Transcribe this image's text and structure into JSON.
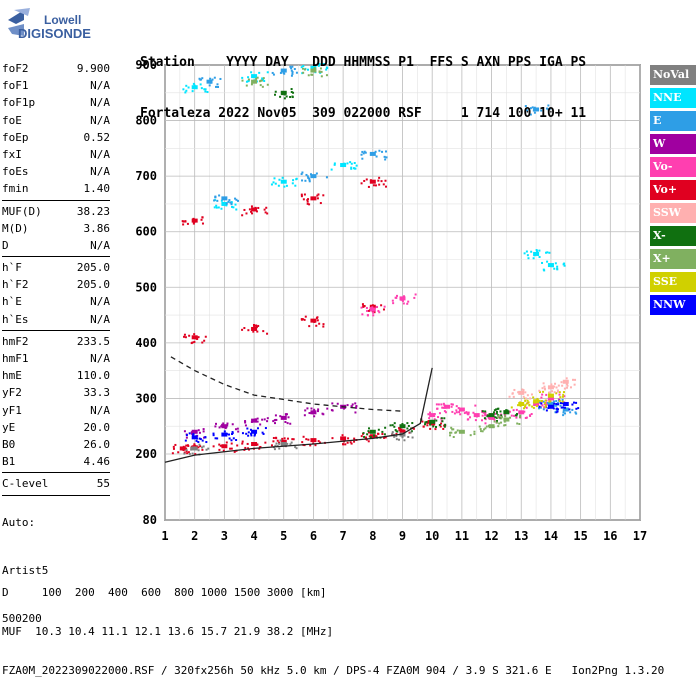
{
  "logo": {
    "line1": "Lowell",
    "line2": "DIGISONDE"
  },
  "header": {
    "labels": "Station    YYYY DAY   DDD HHMMSS P1  FFS S AXN PPS IGA PS",
    "values": "Fortaleza 2022 Nov05  309 022000 RSF     1 714 100 10+ 11"
  },
  "params": [
    {
      "name": "foF2",
      "value": "9.900"
    },
    {
      "name": "foF1",
      "value": "N/A"
    },
    {
      "name": "foF1p",
      "value": "N/A"
    },
    {
      "name": "foE",
      "value": "N/A"
    },
    {
      "name": "foEp",
      "value": "0.52"
    },
    {
      "name": "fxI",
      "value": "N/A"
    },
    {
      "name": "foEs",
      "value": "N/A"
    },
    {
      "name": "fmin",
      "value": "1.40"
    },
    {
      "sep": true
    },
    {
      "name": "MUF(D)",
      "value": "38.23"
    },
    {
      "name": "M(D)",
      "value": "3.86"
    },
    {
      "name": "D",
      "value": "N/A"
    },
    {
      "sep": true
    },
    {
      "name": "h`F",
      "value": "205.0"
    },
    {
      "name": "h`F2",
      "value": "205.0"
    },
    {
      "name": "h`E",
      "value": "N/A"
    },
    {
      "name": "h`Es",
      "value": "N/A"
    },
    {
      "sep": true
    },
    {
      "name": "hmF2",
      "value": "233.5"
    },
    {
      "name": "hmF1",
      "value": "N/A"
    },
    {
      "name": "hmE",
      "value": "110.0"
    },
    {
      "name": "yF2",
      "value": "33.3"
    },
    {
      "name": "yF1",
      "value": "N/A"
    },
    {
      "name": "yE",
      "value": "20.0"
    },
    {
      "name": "B0",
      "value": "26.0"
    },
    {
      "name": "B1",
      "value": "4.46"
    },
    {
      "sep": true
    },
    {
      "name": "C-level",
      "value": "55"
    },
    {
      "sep": true
    }
  ],
  "auto_block": {
    "line1": "Auto:",
    "line2": "Artist5",
    "line3": "500200"
  },
  "legend": [
    {
      "label": "NoVal",
      "color": "#808080"
    },
    {
      "label": "NNE",
      "color": "#00e5ff"
    },
    {
      "label": "E",
      "color": "#2e9ee6"
    },
    {
      "label": "W",
      "color": "#a000a0"
    },
    {
      "label": "Vo-",
      "color": "#ff3fb0"
    },
    {
      "label": "Vo+",
      "color": "#e00020"
    },
    {
      "label": "SSW",
      "color": "#ffb0b0"
    },
    {
      "label": "X-",
      "color": "#107010"
    },
    {
      "label": "X+",
      "color": "#80b060"
    },
    {
      "label": "SSE",
      "color": "#d0d000"
    },
    {
      "label": "NNW",
      "color": "#0000ff"
    }
  ],
  "footer": {
    "line1": "D     100  200  400  600  800 1000 1500 3000 [km]",
    "line2": "MUF  10.3 10.4 11.1 12.1 13.6 15.7 21.9 38.2 [MHz]",
    "line3": "FZA0M_2022309022000.RSF / 320fx256h 50 kHz 5.0 km / DPS-4 FZA0M 904 / 3.9 S 321.6 E   Ion2Png 1.3.20"
  },
  "chart_data": {
    "type": "scatter",
    "xlabel": "",
    "ylabel": "",
    "xlim": [
      1,
      17
    ],
    "ylim": [
      80,
      900
    ],
    "x_ticks": [
      "1",
      "2",
      "3",
      "4",
      "5",
      "6",
      "7",
      "8",
      "9",
      "10",
      "11",
      "12",
      "13",
      "14",
      "15",
      "16",
      "17"
    ],
    "y_ticks": [
      "80",
      "200",
      "300",
      "400",
      "500",
      "600",
      "700",
      "800",
      "900"
    ],
    "grid": true,
    "series": [
      {
        "name": "Vo+",
        "color": "#e00020",
        "points": [
          [
            1.6,
            210
          ],
          [
            2,
            212
          ],
          [
            3,
            214
          ],
          [
            4,
            218
          ],
          [
            5,
            222
          ],
          [
            6,
            225
          ],
          [
            7,
            228
          ],
          [
            8,
            232
          ],
          [
            9,
            240
          ],
          [
            10,
            255
          ],
          [
            2,
            410
          ],
          [
            4,
            425
          ],
          [
            6,
            440
          ],
          [
            8,
            465
          ],
          [
            2,
            620
          ],
          [
            4,
            640
          ],
          [
            6,
            660
          ],
          [
            8,
            690
          ]
        ]
      },
      {
        "name": "Vo-",
        "color": "#ff3fb0",
        "points": [
          [
            10,
            270
          ],
          [
            10.5,
            285
          ],
          [
            11,
            280
          ],
          [
            11.5,
            270
          ],
          [
            12,
            265
          ],
          [
            13,
            275
          ],
          [
            13.5,
            290
          ],
          [
            14,
            300
          ],
          [
            8,
            460
          ],
          [
            9,
            480
          ]
        ]
      },
      {
        "name": "NNE",
        "color": "#00e5ff",
        "points": [
          [
            2,
            860
          ],
          [
            4,
            880
          ],
          [
            6,
            895
          ],
          [
            3,
            650
          ],
          [
            5,
            690
          ],
          [
            7,
            720
          ],
          [
            13.5,
            560
          ],
          [
            14,
            540
          ]
        ]
      },
      {
        "name": "E",
        "color": "#2e9ee6",
        "points": [
          [
            2.5,
            870
          ],
          [
            5,
            890
          ],
          [
            3,
            660
          ],
          [
            6,
            700
          ],
          [
            8,
            740
          ],
          [
            14,
            290
          ],
          [
            14.5,
            280
          ],
          [
            13.5,
            820
          ]
        ]
      },
      {
        "name": "W",
        "color": "#a000a0",
        "points": [
          [
            2,
            240
          ],
          [
            3,
            250
          ],
          [
            4,
            260
          ],
          [
            5,
            265
          ],
          [
            6,
            275
          ],
          [
            7,
            285
          ]
        ]
      },
      {
        "name": "NNW",
        "color": "#0000ff",
        "points": [
          [
            2,
            230
          ],
          [
            3,
            235
          ],
          [
            4,
            240
          ],
          [
            14,
            285
          ],
          [
            14.5,
            290
          ]
        ]
      },
      {
        "name": "X-",
        "color": "#107010",
        "points": [
          [
            8,
            240
          ],
          [
            9,
            250
          ],
          [
            10,
            258
          ],
          [
            12,
            270
          ],
          [
            12.5,
            275
          ],
          [
            5,
            850
          ]
        ]
      },
      {
        "name": "X+",
        "color": "#80b060",
        "points": [
          [
            11,
            240
          ],
          [
            12,
            250
          ],
          [
            12.5,
            262
          ],
          [
            4,
            870
          ],
          [
            6,
            890
          ]
        ]
      },
      {
        "name": "SSE",
        "color": "#d0d000",
        "points": [
          [
            13,
            290
          ],
          [
            13.5,
            295
          ],
          [
            14,
            305
          ]
        ]
      },
      {
        "name": "SSW",
        "color": "#ffb0b0",
        "points": [
          [
            13,
            310
          ],
          [
            14,
            320
          ],
          [
            14.5,
            330
          ]
        ]
      },
      {
        "name": "NoVal",
        "color": "#808080",
        "points": [
          [
            2,
            210
          ],
          [
            5,
            218
          ],
          [
            9,
            235
          ]
        ]
      }
    ],
    "profile_solid": [
      [
        1,
        185
      ],
      [
        2,
        198
      ],
      [
        4,
        210
      ],
      [
        6,
        218
      ],
      [
        8,
        228
      ],
      [
        9,
        236
      ],
      [
        9.6,
        255
      ],
      [
        9.9,
        330
      ],
      [
        10,
        355
      ]
    ],
    "profile_dashed": [
      [
        1.2,
        375
      ],
      [
        2,
        350
      ],
      [
        3,
        325
      ],
      [
        4,
        306
      ],
      [
        5,
        298
      ],
      [
        6,
        290
      ],
      [
        7,
        285
      ],
      [
        8,
        280
      ],
      [
        9,
        277
      ]
    ]
  }
}
